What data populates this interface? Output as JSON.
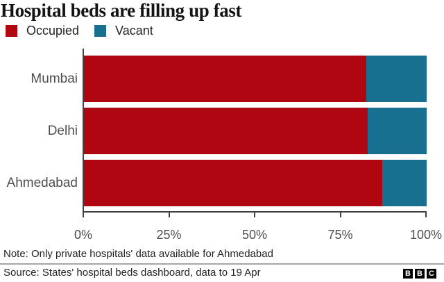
{
  "header": {
    "title": "Hospital beds are filling up fast"
  },
  "legend": {
    "items": [
      {
        "label": "Occupied",
        "color": "#b00612"
      },
      {
        "label": "Vacant",
        "color": "#17708f"
      }
    ]
  },
  "chart_data": {
    "type": "bar",
    "orientation": "horizontal",
    "stacked": true,
    "title": "Hospital beds are filling up fast",
    "categories": [
      "Mumbai",
      "Delhi",
      "Ahmedabad"
    ],
    "series": [
      {
        "name": "Occupied",
        "color": "#b00612",
        "values": [
          82.3,
          82.8,
          87.0
        ]
      },
      {
        "name": "Vacant",
        "color": "#17708f",
        "values": [
          17.7,
          17.2,
          13.0
        ]
      }
    ],
    "x_ticks": [
      "0%",
      "25%",
      "50%",
      "75%",
      "100%"
    ],
    "xlim": [
      0,
      100
    ],
    "unit": "%",
    "grid": false,
    "legend_position": "top-left",
    "axis_color": "#404040",
    "label_color": "#4d4d4d"
  },
  "footer": {
    "note": "Note: Only private hospitals' data available for Ahmedabad",
    "source": "Source: States' hospital beds dashboard, data to 19 Apr",
    "logo_letters": [
      "B",
      "B",
      "C"
    ]
  }
}
